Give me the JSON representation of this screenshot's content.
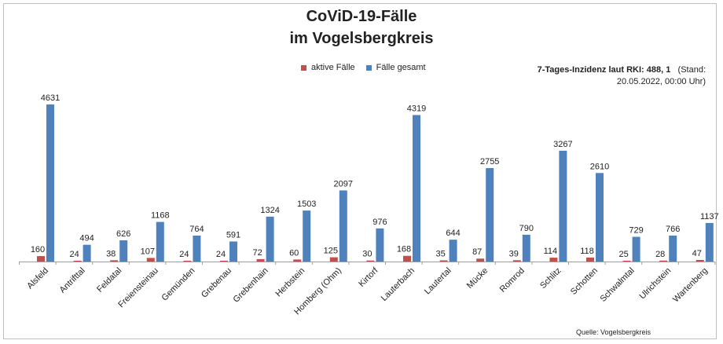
{
  "chart_data": {
    "type": "bar",
    "title": "CoViD-19-Fälle",
    "subtitle": "im Vogelsbergkreis",
    "categories": [
      "Alsfeld",
      "Antrifttal",
      "Feldatal",
      "Freiensteinau",
      "Gemünden",
      "Grebenau",
      "Grebenhain",
      "Herbstein",
      "Homberg (Ohm)",
      "Kirtorf",
      "Lauterbach",
      "Lautertal",
      "Mücke",
      "Romrod",
      "Schlitz",
      "Schotten",
      "Schwalmtal",
      "Ulrichstein",
      "Wartenberg"
    ],
    "series": [
      {
        "name": "aktive Fälle",
        "color": "#c0504d",
        "values": [
          160,
          24,
          38,
          107,
          24,
          24,
          72,
          60,
          125,
          30,
          168,
          35,
          87,
          39,
          114,
          118,
          25,
          28,
          47
        ]
      },
      {
        "name": "Fälle gesamt",
        "color": "#4f81bd",
        "values": [
          4631,
          494,
          626,
          1168,
          764,
          591,
          1324,
          1503,
          2097,
          976,
          4319,
          644,
          2755,
          790,
          3267,
          2610,
          729,
          766,
          1137
        ]
      }
    ],
    "ylim": [
      0,
      4631
    ],
    "grid": false,
    "legend": "top-center"
  },
  "note": {
    "line1_bold": "7-Tages-Inzidenz laut RKI: 488, 1",
    "line1_rest": "(Stand:",
    "line2": "20.05.2022, 00:00 Uhr)"
  },
  "source": "Quelle: Vogelsbergkreis"
}
